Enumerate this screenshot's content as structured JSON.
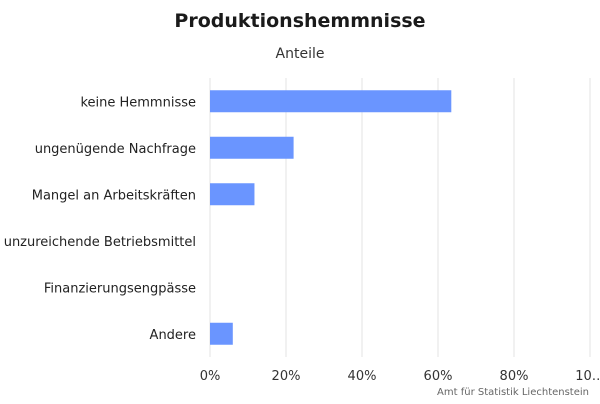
{
  "chart_data": {
    "type": "bar",
    "orientation": "horizontal",
    "title": "Produktionshemmnisse",
    "subtitle": "Anteile",
    "categories": [
      "keine Hemmnisse",
      "ungenügende Nachfrage",
      "Mangel an Arbeitskräften",
      "unzureichende Betriebsmittel",
      "Finanzierungsengpässe",
      "Andere"
    ],
    "values": [
      63.5,
      22,
      11.7,
      0,
      0,
      6
    ],
    "xlim": [
      0,
      100
    ],
    "x_ticks": [
      "0%",
      "20%",
      "40%",
      "60%",
      "80%",
      "10…"
    ],
    "grid": true,
    "bar_color": "#6a95ff",
    "grid_color": "#e3e3e3"
  },
  "credits": "Amt für Statistik Liechtenstein"
}
